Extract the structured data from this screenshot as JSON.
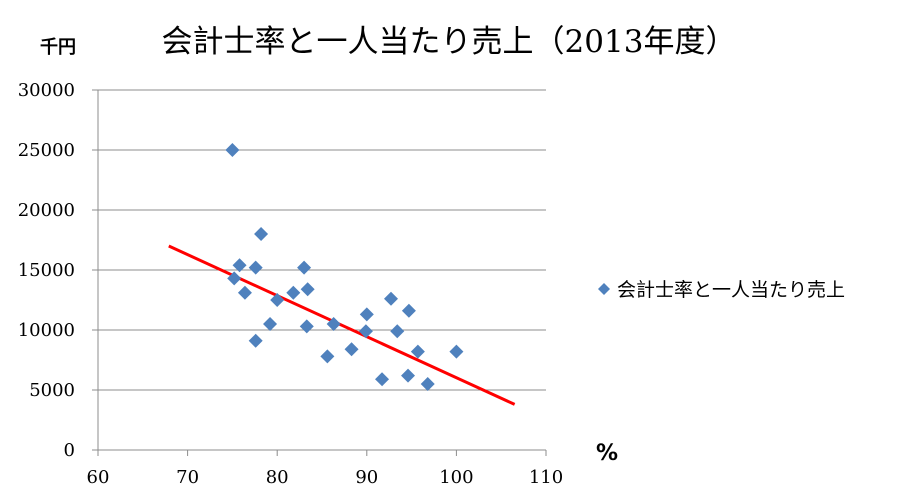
{
  "chart_data": {
    "type": "scatter",
    "title": "会計士率と一人当たり売上（2013年度）",
    "ylabel": "千円",
    "xlabel": "%",
    "xlim": [
      60,
      110
    ],
    "ylim": [
      0,
      30000
    ],
    "x_ticks": [
      60,
      70,
      80,
      90,
      100,
      110
    ],
    "y_ticks": [
      0,
      5000,
      10000,
      15000,
      20000,
      25000,
      30000
    ],
    "grid": "horizontal",
    "legend_position": "right",
    "series": [
      {
        "name": "会計士率と一人当たり売上",
        "color": "#4F81BD",
        "marker": "diamond",
        "points": [
          [
            75.0,
            25000
          ],
          [
            78.2,
            18000
          ],
          [
            75.8,
            15400
          ],
          [
            77.6,
            15200
          ],
          [
            83.0,
            15200
          ],
          [
            75.2,
            14300
          ],
          [
            76.4,
            13100
          ],
          [
            81.8,
            13100
          ],
          [
            83.4,
            13400
          ],
          [
            80.0,
            12500
          ],
          [
            79.2,
            10500
          ],
          [
            83.3,
            10300
          ],
          [
            86.3,
            10500
          ],
          [
            77.6,
            9100
          ],
          [
            90.0,
            11300
          ],
          [
            92.7,
            12600
          ],
          [
            94.7,
            11600
          ],
          [
            89.9,
            9900
          ],
          [
            93.4,
            9900
          ],
          [
            85.6,
            7800
          ],
          [
            88.3,
            8400
          ],
          [
            95.7,
            8200
          ],
          [
            100.0,
            8200
          ],
          [
            91.7,
            5900
          ],
          [
            94.6,
            6200
          ],
          [
            96.8,
            5500
          ]
        ]
      }
    ],
    "trendline": {
      "color": "#FF0000",
      "x": [
        67.9,
        106.5
      ],
      "y": [
        17000,
        3800
      ]
    }
  }
}
